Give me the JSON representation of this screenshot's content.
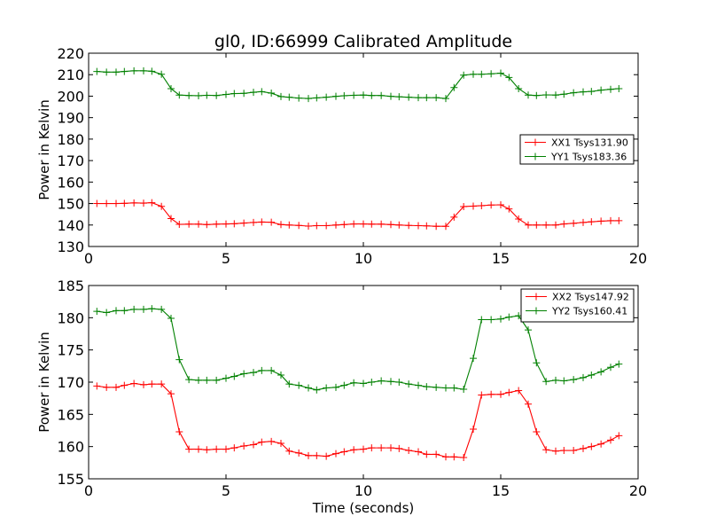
{
  "figure": {
    "title": "gl0, ID:66999 Calibrated Amplitude",
    "xlabel": "Time (seconds)"
  },
  "chart_data": [
    {
      "type": "line",
      "xlabel": "",
      "ylabel": "Power in Kelvin",
      "xlim": [
        0,
        20
      ],
      "ylim": [
        130,
        220
      ],
      "xticks": [
        "0",
        "5",
        "10",
        "15",
        "20"
      ],
      "yticks": [
        "130",
        "140",
        "150",
        "160",
        "170",
        "180",
        "190",
        "200",
        "210",
        "220"
      ],
      "grid": false,
      "legend_position": "center-right",
      "x": [
        0.3,
        0.65,
        1.0,
        1.3,
        1.65,
        2.0,
        2.3,
        2.65,
        3.0,
        3.3,
        3.65,
        4.0,
        4.3,
        4.65,
        5.0,
        5.3,
        5.65,
        6.0,
        6.3,
        6.65,
        7.0,
        7.3,
        7.65,
        8.0,
        8.3,
        8.65,
        9.0,
        9.3,
        9.65,
        10.0,
        10.3,
        10.65,
        11.0,
        11.3,
        11.65,
        12.0,
        12.3,
        12.65,
        13.0,
        13.3,
        13.65,
        14.0,
        14.3,
        14.65,
        15.0,
        15.3,
        15.65,
        16.0,
        16.3,
        16.65,
        17.0,
        17.3,
        17.65,
        18.0,
        18.3,
        18.65,
        19.0,
        19.3
      ],
      "series": [
        {
          "name": "XX1 Tsys131.90",
          "color": "#ff0000",
          "values": [
            150.0,
            150.0,
            150.0,
            150.1,
            150.3,
            150.2,
            150.4,
            148.7,
            143.0,
            140.3,
            140.4,
            140.4,
            140.2,
            140.4,
            140.5,
            140.6,
            140.9,
            141.2,
            141.4,
            141.3,
            140.2,
            140.0,
            139.8,
            139.5,
            139.7,
            139.7,
            140.0,
            140.2,
            140.5,
            140.5,
            140.4,
            140.4,
            140.2,
            140.0,
            139.8,
            139.7,
            139.6,
            139.4,
            139.4,
            143.7,
            148.6,
            148.8,
            149.0,
            149.3,
            149.4,
            147.5,
            142.8,
            140.0,
            140.0,
            140.0,
            140.0,
            140.5,
            140.8,
            141.2,
            141.5,
            141.8,
            142.0,
            142.0
          ]
        },
        {
          "name": "YY1 Tsys183.36",
          "color": "#008000",
          "values": [
            211.5,
            211.2,
            211.2,
            211.5,
            211.8,
            211.8,
            211.6,
            210.2,
            203.5,
            200.5,
            200.3,
            200.2,
            200.4,
            200.3,
            200.8,
            201.2,
            201.3,
            201.8,
            202.1,
            201.4,
            199.8,
            199.5,
            199.1,
            198.9,
            199.2,
            199.5,
            199.9,
            200.2,
            200.4,
            200.5,
            200.3,
            200.3,
            199.9,
            199.7,
            199.5,
            199.3,
            199.3,
            199.3,
            198.9,
            204.0,
            209.8,
            210.2,
            210.2,
            210.4,
            210.7,
            208.7,
            203.5,
            200.5,
            200.3,
            200.6,
            200.5,
            200.9,
            201.6,
            202.0,
            202.2,
            202.8,
            203.2,
            203.5
          ]
        }
      ]
    },
    {
      "type": "line",
      "xlabel": "Time (seconds)",
      "ylabel": "Power in Kelvin",
      "xlim": [
        0,
        20
      ],
      "ylim": [
        155,
        185
      ],
      "xticks": [
        "0",
        "5",
        "10",
        "15",
        "20"
      ],
      "yticks": [
        "155",
        "160",
        "165",
        "170",
        "175",
        "180",
        "185"
      ],
      "grid": false,
      "legend_position": "top-right",
      "x": [
        0.3,
        0.65,
        1.0,
        1.3,
        1.65,
        2.0,
        2.3,
        2.65,
        3.0,
        3.3,
        3.65,
        4.0,
        4.3,
        4.65,
        5.0,
        5.3,
        5.65,
        6.0,
        6.3,
        6.65,
        7.0,
        7.3,
        7.65,
        8.0,
        8.3,
        8.65,
        9.0,
        9.3,
        9.65,
        10.0,
        10.3,
        10.65,
        11.0,
        11.3,
        11.65,
        12.0,
        12.3,
        12.65,
        13.0,
        13.3,
        13.65,
        14.0,
        14.3,
        14.65,
        15.0,
        15.3,
        15.65,
        16.0,
        16.3,
        16.65,
        17.0,
        17.3,
        17.65,
        18.0,
        18.3,
        18.65,
        19.0,
        19.3
      ],
      "series": [
        {
          "name": "XX2 Tsys147.92",
          "color": "#ff0000",
          "values": [
            169.4,
            169.2,
            169.2,
            169.5,
            169.8,
            169.6,
            169.7,
            169.7,
            168.2,
            162.3,
            159.6,
            159.6,
            159.5,
            159.6,
            159.6,
            159.8,
            160.1,
            160.3,
            160.7,
            160.8,
            160.5,
            159.3,
            159.0,
            158.6,
            158.6,
            158.5,
            158.9,
            159.2,
            159.5,
            159.6,
            159.8,
            159.8,
            159.8,
            159.7,
            159.4,
            159.2,
            158.8,
            158.8,
            158.4,
            158.4,
            158.3,
            162.7,
            168.0,
            168.1,
            168.1,
            168.4,
            168.7,
            166.6,
            162.3,
            159.5,
            159.3,
            159.4,
            159.4,
            159.7,
            160.0,
            160.4,
            161.0,
            161.7
          ]
        },
        {
          "name": "YY2 Tsys160.41",
          "color": "#008000",
          "values": [
            181.0,
            180.8,
            181.1,
            181.1,
            181.3,
            181.3,
            181.4,
            181.3,
            179.9,
            173.5,
            170.4,
            170.3,
            170.3,
            170.3,
            170.6,
            170.9,
            171.3,
            171.5,
            171.8,
            171.8,
            171.1,
            169.7,
            169.5,
            169.1,
            168.8,
            169.1,
            169.2,
            169.5,
            169.9,
            169.8,
            170.0,
            170.2,
            170.1,
            170.0,
            169.7,
            169.5,
            169.3,
            169.2,
            169.1,
            169.1,
            168.9,
            173.7,
            179.7,
            179.7,
            179.8,
            180.1,
            180.3,
            178.1,
            173.0,
            170.1,
            170.3,
            170.2,
            170.4,
            170.7,
            171.1,
            171.6,
            172.3,
            172.8
          ]
        }
      ]
    }
  ]
}
